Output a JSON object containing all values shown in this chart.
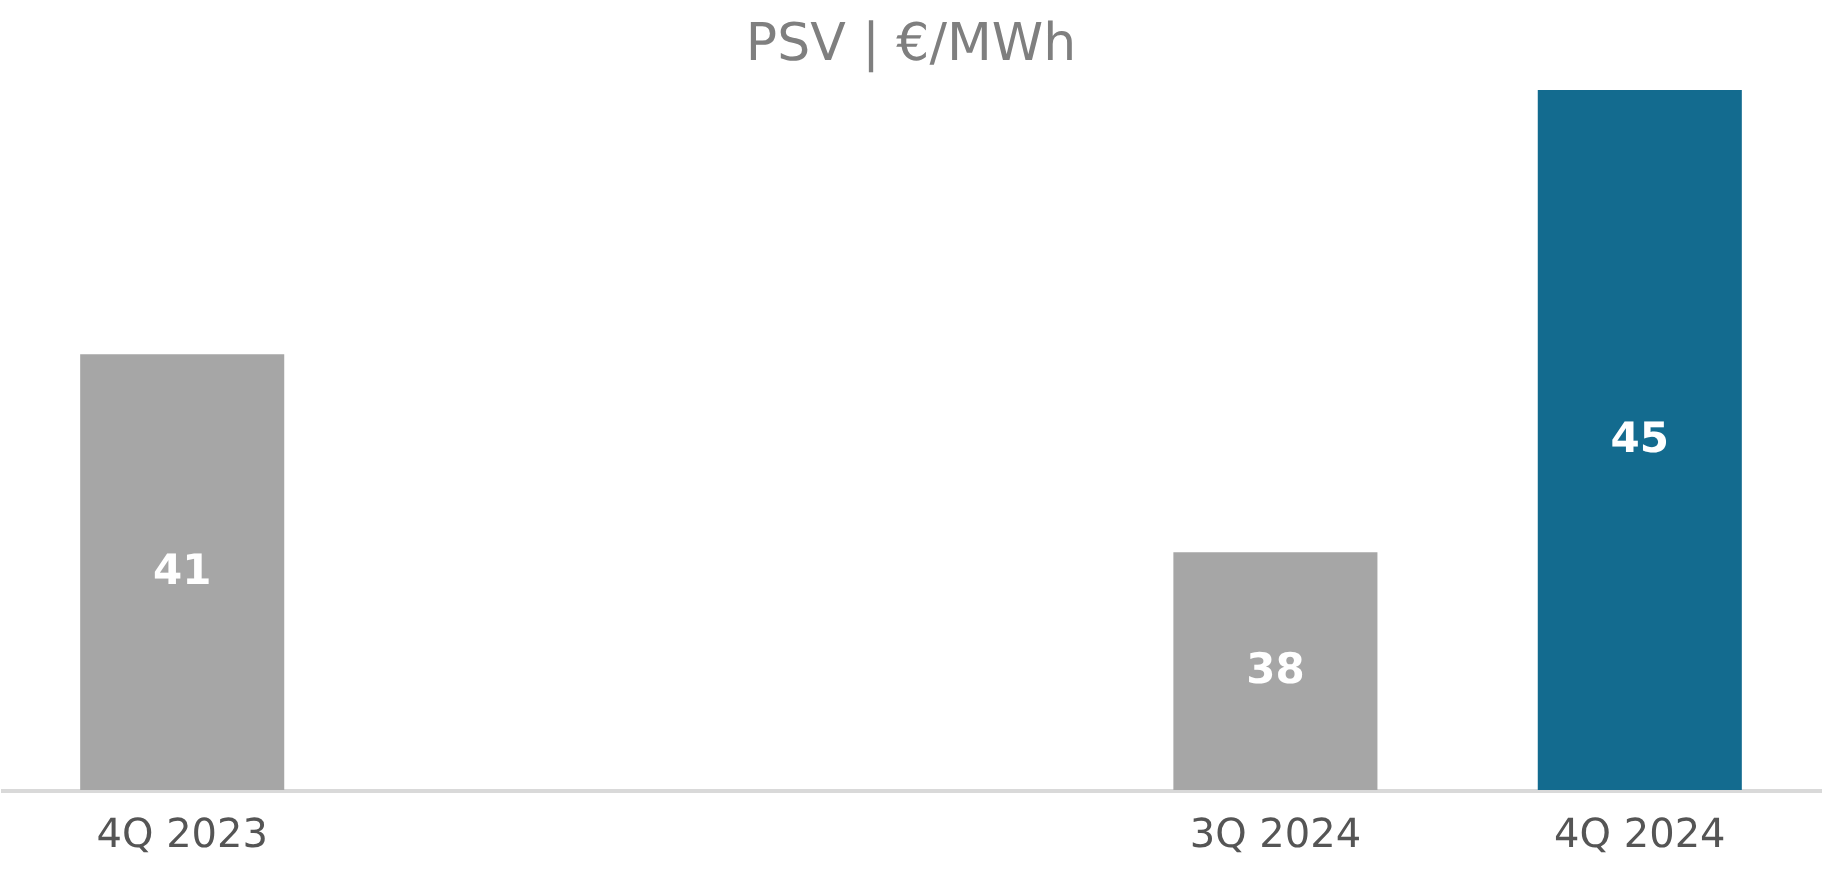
{
  "chart_data": {
    "type": "bar",
    "title": "PSV | €/MWh",
    "categories": [
      "4Q 2023",
      null,
      null,
      "3Q 2024",
      "4Q 2024"
    ],
    "values": [
      41,
      null,
      null,
      38,
      45
    ],
    "colors": [
      "#a6a6a6",
      "#a6a6a6",
      "#a6a6a6",
      "#a6a6a6",
      "#136b8f"
    ],
    "ylim": [
      34.4,
      45
    ],
    "data_labels": true
  }
}
